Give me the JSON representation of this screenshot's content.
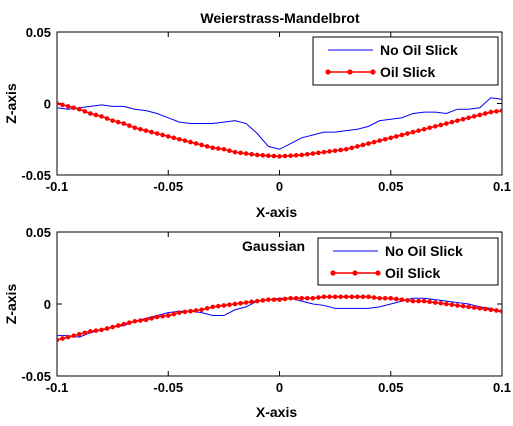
{
  "chart_data": [
    {
      "type": "line",
      "title": "Weierstrass-Mandelbrot",
      "xlabel": "X-axis",
      "ylabel": "Z-axis",
      "xlim": [
        -0.1,
        0.1
      ],
      "ylim": [
        -0.05,
        0.05
      ],
      "xticks": [
        "-0.1",
        "-0.05",
        "0",
        "0.05",
        "0.1"
      ],
      "yticks": [
        "0.05",
        "0",
        "-0.05"
      ],
      "legend_position": "top-right",
      "series": [
        {
          "name": "No Oil Slick",
          "color": "#0000ff",
          "marker": "none",
          "x": [
            -0.1,
            -0.095,
            -0.09,
            -0.085,
            -0.08,
            -0.075,
            -0.07,
            -0.065,
            -0.06,
            -0.055,
            -0.05,
            -0.045,
            -0.04,
            -0.035,
            -0.03,
            -0.025,
            -0.02,
            -0.015,
            -0.01,
            -0.005,
            0,
            0.005,
            0.01,
            0.015,
            0.02,
            0.025,
            0.03,
            0.035,
            0.04,
            0.045,
            0.05,
            0.055,
            0.06,
            0.065,
            0.07,
            0.075,
            0.08,
            0.085,
            0.09,
            0.095,
            0.1
          ],
          "y": [
            -0.003,
            -0.004,
            -0.003,
            -0.002,
            -0.001,
            -0.002,
            -0.002,
            -0.004,
            -0.005,
            -0.007,
            -0.01,
            -0.013,
            -0.014,
            -0.014,
            -0.014,
            -0.013,
            -0.012,
            -0.014,
            -0.021,
            -0.03,
            -0.032,
            -0.028,
            -0.024,
            -0.022,
            -0.02,
            -0.02,
            -0.019,
            -0.018,
            -0.016,
            -0.012,
            -0.011,
            -0.01,
            -0.007,
            -0.006,
            -0.006,
            -0.007,
            -0.004,
            -0.004,
            -0.003,
            0.004,
            0.003
          ]
        },
        {
          "name": "Oil Slick",
          "color": "#ff0000",
          "marker": "dot",
          "x": [
            -0.1,
            -0.095,
            -0.09,
            -0.085,
            -0.08,
            -0.075,
            -0.07,
            -0.065,
            -0.06,
            -0.055,
            -0.05,
            -0.045,
            -0.04,
            -0.035,
            -0.03,
            -0.025,
            -0.02,
            -0.015,
            -0.01,
            -0.005,
            0,
            0.005,
            0.01,
            0.015,
            0.02,
            0.025,
            0.03,
            0.035,
            0.04,
            0.045,
            0.05,
            0.055,
            0.06,
            0.065,
            0.07,
            0.075,
            0.08,
            0.085,
            0.09,
            0.095,
            0.1
          ],
          "y": [
            0.0,
            -0.002,
            -0.004,
            -0.007,
            -0.009,
            -0.012,
            -0.014,
            -0.017,
            -0.019,
            -0.021,
            -0.023,
            -0.025,
            -0.027,
            -0.029,
            -0.031,
            -0.032,
            -0.034,
            -0.035,
            -0.036,
            -0.0365,
            -0.037,
            -0.0365,
            -0.036,
            -0.035,
            -0.034,
            -0.033,
            -0.032,
            -0.03,
            -0.028,
            -0.026,
            -0.024,
            -0.022,
            -0.02,
            -0.018,
            -0.016,
            -0.014,
            -0.012,
            -0.01,
            -0.008,
            -0.006,
            -0.005
          ]
        }
      ]
    },
    {
      "type": "line",
      "title": "Gaussian",
      "xlabel": "X-axis",
      "ylabel": "Z-axis",
      "xlim": [
        -0.1,
        0.1
      ],
      "ylim": [
        -0.05,
        0.05
      ],
      "xticks": [
        "-0.1",
        "-0.05",
        "0",
        "0.05",
        "0.1"
      ],
      "yticks": [
        "0.05",
        "0",
        "-0.05"
      ],
      "legend_position": "top-right",
      "series": [
        {
          "name": "No Oil Slick",
          "color": "#0000ff",
          "marker": "none",
          "x": [
            -0.1,
            -0.095,
            -0.09,
            -0.085,
            -0.08,
            -0.075,
            -0.07,
            -0.065,
            -0.06,
            -0.055,
            -0.05,
            -0.045,
            -0.04,
            -0.035,
            -0.03,
            -0.025,
            -0.02,
            -0.015,
            -0.01,
            -0.005,
            0,
            0.005,
            0.01,
            0.015,
            0.02,
            0.025,
            0.03,
            0.035,
            0.04,
            0.045,
            0.05,
            0.055,
            0.06,
            0.065,
            0.07,
            0.075,
            0.08,
            0.085,
            0.09,
            0.095,
            0.1
          ],
          "y": [
            -0.022,
            -0.022,
            -0.023,
            -0.02,
            -0.018,
            -0.016,
            -0.015,
            -0.012,
            -0.01,
            -0.008,
            -0.006,
            -0.005,
            -0.005,
            -0.006,
            -0.008,
            -0.008,
            -0.004,
            -0.002,
            0.002,
            0.003,
            0.004,
            0.004,
            0.002,
            0.0,
            -0.001,
            -0.003,
            -0.003,
            -0.003,
            -0.003,
            -0.002,
            0.0,
            0.002,
            0.004,
            0.004,
            0.003,
            0.002,
            0.001,
            0.0,
            -0.002,
            -0.003,
            -0.006
          ]
        },
        {
          "name": "Oil Slick",
          "color": "#ff0000",
          "marker": "dot",
          "x": [
            -0.1,
            -0.095,
            -0.09,
            -0.085,
            -0.08,
            -0.075,
            -0.07,
            -0.065,
            -0.06,
            -0.055,
            -0.05,
            -0.045,
            -0.04,
            -0.035,
            -0.03,
            -0.025,
            -0.02,
            -0.015,
            -0.01,
            -0.005,
            0,
            0.005,
            0.01,
            0.015,
            0.02,
            0.025,
            0.03,
            0.035,
            0.04,
            0.045,
            0.05,
            0.055,
            0.06,
            0.065,
            0.07,
            0.075,
            0.08,
            0.085,
            0.09,
            0.095,
            0.1
          ],
          "y": [
            -0.025,
            -0.023,
            -0.021,
            -0.019,
            -0.018,
            -0.016,
            -0.014,
            -0.012,
            -0.011,
            -0.009,
            -0.008,
            -0.006,
            -0.005,
            -0.004,
            -0.002,
            -0.001,
            0.0,
            0.001,
            0.002,
            0.003,
            0.003,
            0.004,
            0.004,
            0.004,
            0.005,
            0.005,
            0.005,
            0.005,
            0.005,
            0.004,
            0.004,
            0.003,
            0.002,
            0.002,
            0.001,
            0.0,
            -0.001,
            -0.002,
            -0.003,
            -0.004,
            -0.005
          ]
        }
      ]
    }
  ]
}
